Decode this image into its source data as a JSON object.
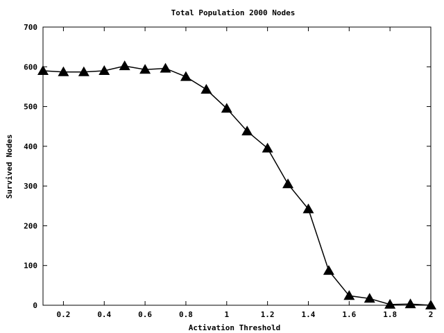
{
  "chart_data": {
    "type": "line",
    "title": "Total Population 2000  Nodes",
    "xlabel": "Activation Threshold",
    "ylabel": "Survived Nodes",
    "xlim": [
      0.1,
      2.0
    ],
    "ylim": [
      0,
      700
    ],
    "x_ticks": [
      0.2,
      0.4,
      0.6,
      0.8,
      1.0,
      1.2,
      1.4,
      1.6,
      1.8,
      2.0
    ],
    "x_tick_labels": [
      "0.2",
      "0.4",
      "0.6",
      "0.8",
      "1",
      "1.2",
      "1.4",
      "1.6",
      "1.8",
      "2"
    ],
    "y_ticks": [
      0,
      100,
      200,
      300,
      400,
      500,
      600,
      700
    ],
    "y_tick_labels": [
      "0",
      "100",
      "200",
      "300",
      "400",
      "500",
      "600",
      "700"
    ],
    "grid": false,
    "legend": "none",
    "marker": "filled-triangle",
    "line_color": "#000000",
    "series": [
      {
        "x": [
          0.1,
          0.2,
          0.3,
          0.4,
          0.5,
          0.6,
          0.7,
          0.8,
          0.9,
          1.0,
          1.1,
          1.2,
          1.3,
          1.4,
          1.5,
          1.6,
          1.7,
          1.8,
          1.9,
          2.0
        ],
        "values": [
          590,
          587,
          587,
          590,
          602,
          593,
          596,
          575,
          543,
          495,
          438,
          395,
          305,
          242,
          87,
          24,
          17,
          2,
          3,
          0
        ]
      }
    ]
  }
}
